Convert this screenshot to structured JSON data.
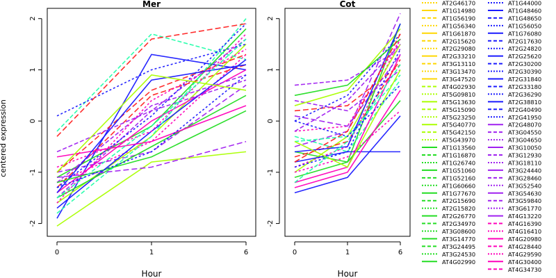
{
  "chart_data": {
    "type": "line",
    "y_axis_label": "centered expression",
    "y_ticks": [
      -2,
      -1,
      0,
      1,
      2
    ],
    "ylim": [
      -2.25,
      2.2
    ],
    "grid": false,
    "legend_placement": "right",
    "panels": [
      {
        "title": "Mer",
        "x_label": "Hour",
        "x_ticks": [
          "0",
          "1",
          "6"
        ],
        "profiles": [
          [
            -1.9,
            1.3,
            1.0
          ],
          [
            -1.5,
            0.2,
            1.6
          ],
          [
            -1.2,
            -0.4,
            1.3
          ],
          [
            -1.1,
            -0.1,
            1.8
          ],
          [
            -1.3,
            0.5,
            1.1
          ],
          [
            -1.6,
            -0.3,
            1.5
          ],
          [
            -0.2,
            1.7,
            1.2
          ],
          [
            0.1,
            1.0,
            1.5
          ],
          [
            -1.4,
            0.0,
            1.0
          ],
          [
            -1.0,
            -0.6,
            0.7
          ],
          [
            -1.7,
            -0.2,
            1.2
          ],
          [
            -1.2,
            0.3,
            0.9
          ],
          [
            -0.9,
            -0.2,
            1.7
          ],
          [
            -1.5,
            -0.5,
            0.5
          ],
          [
            -1.0,
            0.6,
            1.3
          ],
          [
            -2.05,
            -0.8,
            -0.6
          ],
          [
            -1.8,
            -0.3,
            2.0
          ],
          [
            -1.3,
            0.1,
            1.9
          ],
          [
            -0.7,
            -0.4,
            0.3
          ],
          [
            -1.1,
            -0.9,
            -0.4
          ],
          [
            -1.4,
            0.8,
            1.1
          ],
          [
            -0.6,
            0.2,
            0.8
          ],
          [
            -1.6,
            0.4,
            1.4
          ],
          [
            -1.2,
            -0.7,
            0.2
          ],
          [
            -0.3,
            1.6,
            1.9
          ],
          [
            -1.0,
            0.9,
            0.6
          ],
          [
            -1.5,
            -0.1,
            1.6
          ],
          [
            -1.3,
            -0.6,
            0.9
          ]
        ]
      },
      {
        "title": "Cot",
        "x_label": "Hour",
        "x_ticks": [
          "0",
          "1",
          "6"
        ],
        "profiles": [
          [
            -1.4,
            -1.1,
            0.1
          ],
          [
            0.7,
            0.8,
            1.4
          ],
          [
            -0.9,
            -0.5,
            1.6
          ],
          [
            -0.6,
            -0.8,
            1.9
          ],
          [
            0.2,
            0.3,
            1.1
          ],
          [
            -1.0,
            -0.3,
            1.5
          ],
          [
            -0.3,
            -0.6,
            0.8
          ],
          [
            0.0,
            0.5,
            1.7
          ],
          [
            -1.2,
            -0.9,
            1.3
          ],
          [
            -0.5,
            -0.2,
            2.1
          ],
          [
            -0.8,
            -0.6,
            -0.6
          ],
          [
            0.4,
            0.2,
            1.0
          ],
          [
            -0.2,
            -0.1,
            1.6
          ],
          [
            -1.1,
            -0.8,
            0.4
          ],
          [
            -0.7,
            -0.4,
            1.2
          ],
          [
            0.3,
            0.6,
            1.8
          ],
          [
            -0.4,
            -0.3,
            0.9
          ],
          [
            -0.9,
            -0.6,
            1.4
          ],
          [
            -1.3,
            -1.0,
            0.6
          ],
          [
            0.1,
            -0.1,
            1.3
          ],
          [
            -0.6,
            -0.5,
            1.9
          ],
          [
            -0.2,
            0.4,
            1.5
          ],
          [
            -1.0,
            -0.7,
            0.2
          ],
          [
            0.5,
            0.7,
            1.6
          ],
          [
            -0.8,
            -0.2,
            1.7
          ],
          [
            -0.4,
            -0.9,
            1.0
          ],
          [
            -1.2,
            -0.4,
            1.1
          ],
          [
            0.0,
            -0.3,
            0.7
          ]
        ]
      }
    ],
    "legend": {
      "col1": [
        "AT2G46170",
        "AT1G14980",
        "AT1G56190",
        "AT1G56340",
        "AT1G61870",
        "AT2G15620",
        "AT2G29080",
        "AT2G33210",
        "AT3G13110",
        "AT3G13470",
        "AT3G47520",
        "AT4G02930",
        "AT5G09810",
        "AT5G13630",
        "AT5G15090",
        "AT5G23250",
        "AT5G40770",
        "AT5G42150",
        "AT5G43970",
        "AT1G13560",
        "AT1G16870",
        "AT1G26740",
        "AT1G51060",
        "AT1G52160",
        "AT1G60660",
        "AT1G77670",
        "AT2G15690",
        "AT2G15820",
        "AT2G26770",
        "AT2G34970",
        "AT3G08600",
        "AT3G14770",
        "AT3G24495",
        "AT3G24530",
        "AT4G02990"
      ],
      "col2": [
        "AT1G44000",
        "AT1G48460",
        "AT1G48650",
        "AT1G56050",
        "AT1G76080",
        "AT2G17630",
        "AT2G24820",
        "AT2G25620",
        "AT2G30200",
        "AT2G30390",
        "AT2G31840",
        "AT2G33180",
        "AT2G36290",
        "AT2G38810",
        "AT2G40490",
        "AT2G41950",
        "AT2G48070",
        "AT3G04550",
        "AT3G04650",
        "AT3G10050",
        "AT3G12930",
        "AT3G18110",
        "AT3G24440",
        "AT3G28460",
        "AT3G52540",
        "AT3G54630",
        "AT3G59840",
        "AT3G61770",
        "AT4G13220",
        "AT4G16390",
        "AT4G16410",
        "AT4G20980",
        "AT4G28440",
        "AT4G29590",
        "AT4G30400",
        "AT4G34730"
      ]
    }
  },
  "colors": {
    "yellow": "#ffd700",
    "green": "#22dd22",
    "blue": "#1a1aff",
    "purple": "#a020f0",
    "magenta": "#ff00bb",
    "red": "#ff2222",
    "yellowgreen": "#aaff00",
    "teal": "#22ffaa"
  }
}
